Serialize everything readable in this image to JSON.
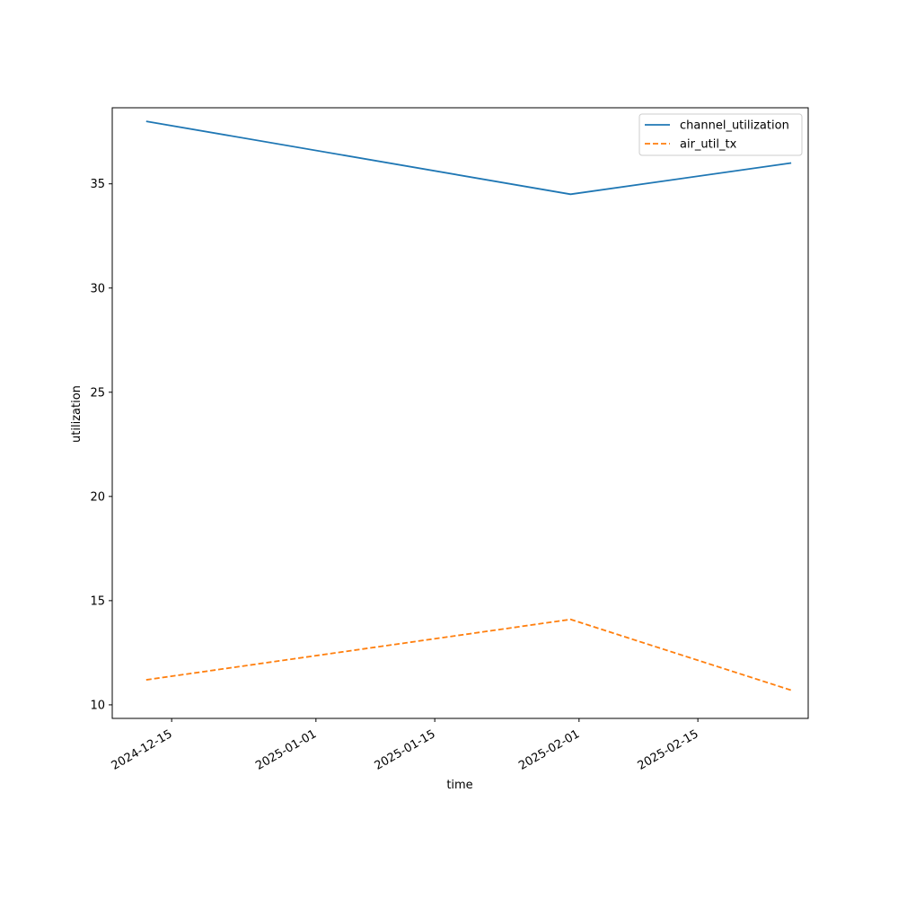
{
  "chart_data": {
    "type": "line",
    "title": "",
    "xlabel": "time",
    "ylabel": "utilization",
    "x_is_date": true,
    "xlim": [
      "2024-12-08",
      "2025-02-28"
    ],
    "ylim": [
      9.35,
      38.65
    ],
    "x_ticks": [
      "2024-12-15",
      "2025-01-01",
      "2025-01-15",
      "2025-02-01",
      "2025-02-15"
    ],
    "y_ticks": [
      10,
      15,
      20,
      25,
      30,
      35
    ],
    "grid": false,
    "legend_position": "top-right",
    "series": [
      {
        "name": "channel_utilization",
        "color": "#1f77b4",
        "line_style": "solid",
        "x": [
          "2024-12-12",
          "2025-01-31",
          "2025-02-26"
        ],
        "y": [
          38.0,
          34.5,
          36.0
        ]
      },
      {
        "name": "air_util_tx",
        "color": "#ff7f0e",
        "line_style": "dashed",
        "x": [
          "2024-12-12",
          "2025-01-31",
          "2025-02-26"
        ],
        "y": [
          11.2,
          14.1,
          10.7
        ]
      }
    ]
  }
}
